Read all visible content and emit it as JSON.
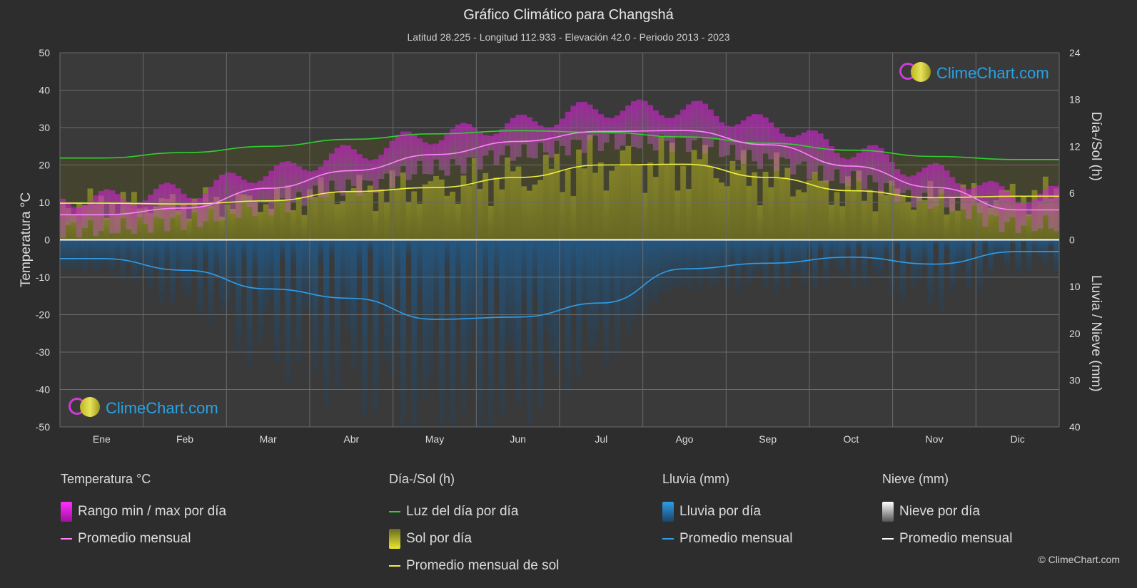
{
  "title": "Gráfico Climático para Changshá",
  "subtitle": "Latitud 28.225 - Longitud 112.933 - Elevación 42.0 - Periodo 2013 - 2023",
  "watermark": "ClimeChart.com",
  "copyright": "© ClimeChart.com",
  "colors": {
    "background": "#2d2d2d",
    "temp_range": "#e020e0",
    "temp_avg": "#ff80ff",
    "daylight": "#30d030",
    "sunshine_fill": "#c8c830",
    "sunshine_avg": "#f0f040",
    "rain_fill": "#2a6fa8",
    "rain_avg": "#2f9de8",
    "snow": "#ffffff"
  },
  "legend": {
    "temp": {
      "header": "Temperatura °C",
      "range": "Rango min / max por día",
      "avg": "Promedio mensual"
    },
    "sun": {
      "header": "Día-/Sol (h)",
      "daylight": "Luz del día por día",
      "sunshine": "Sol por día",
      "sun_avg": "Promedio mensual de sol"
    },
    "rain": {
      "header": "Lluvia (mm)",
      "daily": "Lluvia por día",
      "avg": "Promedio mensual"
    },
    "snow": {
      "header": "Nieve (mm)",
      "daily": "Nieve por día",
      "avg": "Promedio mensual"
    }
  },
  "chart_data": {
    "type": "line",
    "title": "Gráfico Climático para Changshá",
    "categories": [
      "Ene",
      "Feb",
      "Mar",
      "Abr",
      "May",
      "Jun",
      "Jul",
      "Ago",
      "Sep",
      "Oct",
      "Nov",
      "Dic"
    ],
    "y_left": {
      "label": "Temperatura °C",
      "range": [
        -50,
        50
      ],
      "ticks": [
        50,
        40,
        30,
        20,
        10,
        0,
        -10,
        -20,
        -30,
        -40,
        -50
      ]
    },
    "y_right_top": {
      "label": "Día-/Sol (h)",
      "range": [
        0,
        24
      ],
      "ticks": [
        24,
        18,
        12,
        6,
        0
      ]
    },
    "y_right_bottom": {
      "label": "Lluvia / Nieve (mm)",
      "range": [
        0,
        40
      ],
      "ticks": [
        0,
        10,
        20,
        30,
        40
      ]
    },
    "grid": true,
    "series": [
      {
        "name": "Promedio mensual",
        "axis": "temperature",
        "values": [
          6.7,
          8.5,
          13.8,
          18.5,
          22.8,
          26.3,
          29.0,
          29.2,
          25.4,
          19.7,
          14.0,
          8.0
        ]
      },
      {
        "name": "Temp máx diaria",
        "axis": "temperature",
        "values": [
          11,
          13,
          18,
          23,
          28,
          31,
          35,
          35,
          31,
          24,
          18,
          12
        ]
      },
      {
        "name": "Temp mín diaria",
        "axis": "temperature",
        "values": [
          3,
          5,
          9,
          14,
          19,
          23,
          26,
          26,
          21,
          16,
          10,
          4
        ]
      },
      {
        "name": "Luz del día por día",
        "axis": "hours",
        "values": [
          10.5,
          11.2,
          12.0,
          12.9,
          13.6,
          14.0,
          13.8,
          13.2,
          12.4,
          11.5,
          10.7,
          10.3
        ]
      },
      {
        "name": "Promedio mensual de sol",
        "axis": "hours",
        "values": [
          4.7,
          4.6,
          5.0,
          6.2,
          6.7,
          8.0,
          9.6,
          9.7,
          8.0,
          6.3,
          5.4,
          5.6
        ]
      },
      {
        "name": "Promedio mensual",
        "axis": "rain_mm",
        "values": [
          4.0,
          6.5,
          10.5,
          12.5,
          17.0,
          16.5,
          13.5,
          6.2,
          5.0,
          3.7,
          5.2,
          2.5
        ]
      }
    ]
  }
}
